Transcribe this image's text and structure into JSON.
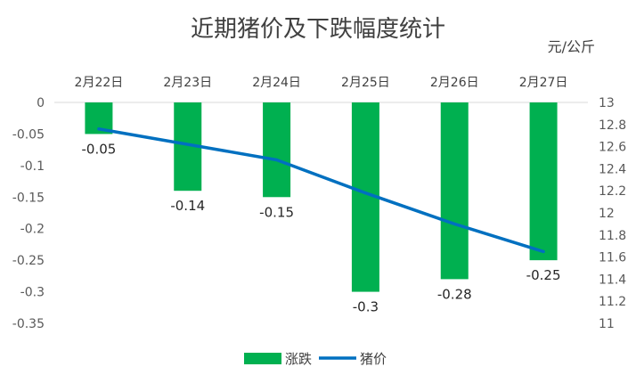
{
  "chart_data": {
    "type": "bar",
    "title": "近期猪价及下跌幅度统计",
    "right_axis_unit": "元/公斤",
    "categories": [
      "2月22日",
      "2月23日",
      "2月24日",
      "2月25日",
      "2月26日",
      "2月27日"
    ],
    "series": [
      {
        "name": "涨跌",
        "type": "bar",
        "axis": "left",
        "color": "#00b050",
        "values": [
          -0.05,
          -0.14,
          -0.15,
          -0.3,
          -0.28,
          -0.25
        ],
        "data_labels": [
          "-0.05",
          "-0.14",
          "-0.15",
          "-0.3",
          "-0.28",
          "-0.25"
        ]
      },
      {
        "name": "猪价",
        "type": "line",
        "axis": "right",
        "color": "#0070c0",
        "values": [
          12.76,
          12.62,
          12.48,
          12.18,
          11.9,
          11.65
        ]
      }
    ],
    "left_axis": {
      "ylim": [
        -0.35,
        0
      ],
      "ticks": [
        0,
        -0.05,
        -0.1,
        -0.15,
        -0.2,
        -0.25,
        -0.3,
        -0.35
      ],
      "tick_labels": [
        "0",
        "-0.05",
        "-0.1",
        "-0.15",
        "-0.2",
        "-0.25",
        "-0.3",
        "-0.35"
      ]
    },
    "right_axis": {
      "ylim": [
        11,
        13
      ],
      "ticks": [
        13,
        12.8,
        12.6,
        12.4,
        12.2,
        12,
        11.8,
        11.6,
        11.4,
        11.2,
        11
      ],
      "tick_labels": [
        "13",
        "12.8",
        "12.6",
        "12.4",
        "12.2",
        "12",
        "11.8",
        "11.6",
        "11.4",
        "11.2",
        "11"
      ]
    },
    "grid": false,
    "legend_position": "bottom"
  }
}
